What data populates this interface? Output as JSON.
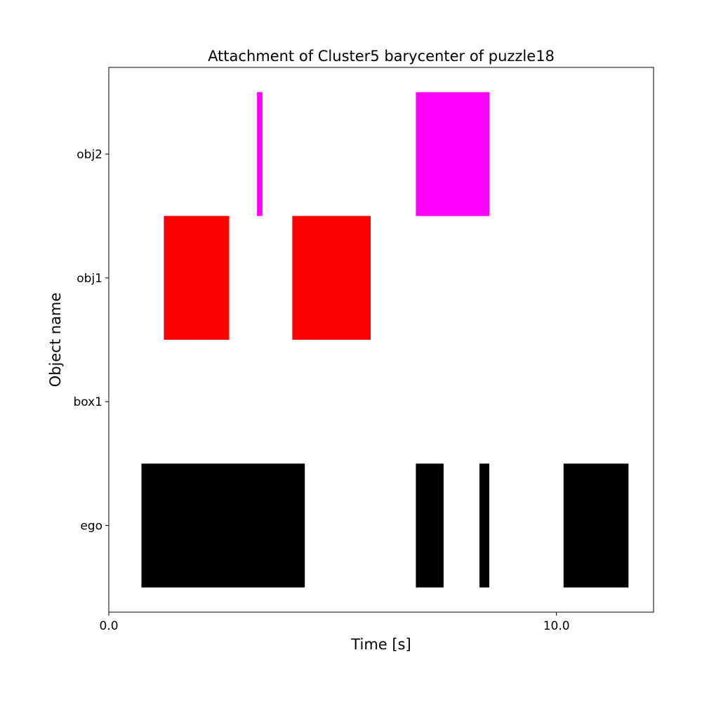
{
  "chart_data": {
    "type": "timeline",
    "title": "Attachment of Cluster5 barycenter of puzzle18",
    "xlabel": "Time [s]",
    "ylabel": "Object name",
    "xlim": [
      0.0,
      12.17
    ],
    "xticks": [
      {
        "value": 0.0,
        "label": "0.0"
      },
      {
        "value": 10.0,
        "label": "10.0"
      }
    ],
    "categories": [
      "ego",
      "box1",
      "obj1",
      "obj2"
    ],
    "grid": false,
    "series": [
      {
        "category": "ego",
        "color": "#000000",
        "intervals": [
          [
            0.73,
            4.38
          ],
          [
            6.86,
            7.48
          ],
          [
            8.28,
            8.5
          ],
          [
            10.16,
            11.61
          ]
        ]
      },
      {
        "category": "box1",
        "color": "#000000",
        "intervals": []
      },
      {
        "category": "obj1",
        "color": "#ff0000",
        "intervals": [
          [
            1.23,
            2.69
          ],
          [
            4.1,
            5.85
          ]
        ]
      },
      {
        "category": "obj2",
        "color": "#ff00ff",
        "intervals": [
          [
            3.31,
            3.43
          ],
          [
            6.86,
            8.5
          ]
        ]
      }
    ]
  }
}
